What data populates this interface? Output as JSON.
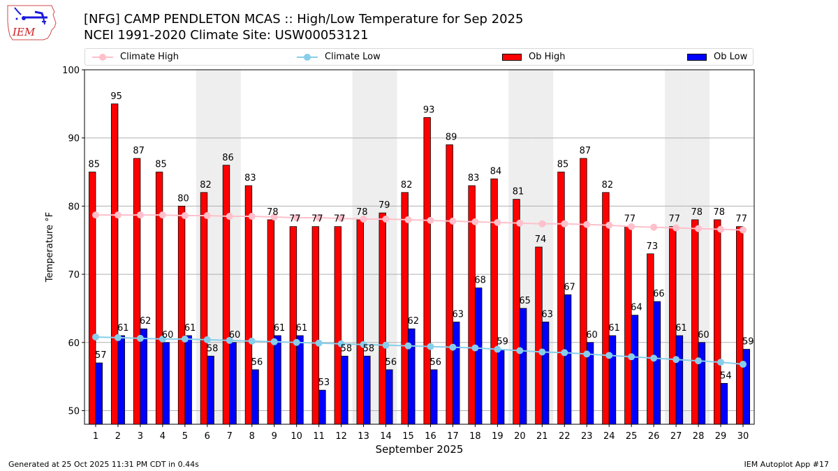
{
  "header": {
    "title_line1": "[NFG] CAMP PENDLETON MCAS :: High/Low Temperature for Sep 2025",
    "title_line2": "NCEI 1991-2020 Climate Site: USW00053121",
    "logo_text": "IEM"
  },
  "footer": {
    "generated": "Generated at 25 Oct 2025 11:31 PM CDT in 0.44s",
    "app": "IEM Autoplot App #17"
  },
  "legend": {
    "items": [
      {
        "label": "Climate High",
        "type": "line",
        "color": "#ffc0cb"
      },
      {
        "label": "Climate Low",
        "type": "line",
        "color": "#87ceeb"
      },
      {
        "label": "Ob High",
        "type": "bar",
        "color": "#ff0000"
      },
      {
        "label": "Ob Low",
        "type": "bar",
        "color": "#0000ff"
      }
    ]
  },
  "chart_data": {
    "type": "bar",
    "title": "[NFG] CAMP PENDLETON MCAS :: High/Low Temperature for Sep 2025",
    "subtitle": "NCEI 1991-2020 Climate Site: USW00053121",
    "xlabel": "September 2025",
    "ylabel": "Temperature °F",
    "ylim": [
      48,
      100
    ],
    "yticks": [
      50,
      60,
      70,
      80,
      90,
      100
    ],
    "grid": "horizontal",
    "legend_position": "top",
    "categories": [
      "1",
      "2",
      "3",
      "4",
      "5",
      "6",
      "7",
      "8",
      "9",
      "10",
      "11",
      "12",
      "13",
      "14",
      "15",
      "16",
      "17",
      "18",
      "19",
      "20",
      "21",
      "22",
      "23",
      "24",
      "25",
      "26",
      "27",
      "28",
      "29",
      "30"
    ],
    "weekend_shading_days": [
      6,
      7,
      13,
      14,
      20,
      21,
      27,
      28
    ],
    "series": [
      {
        "name": "Ob High",
        "type": "bar",
        "color": "#ff0000",
        "values": [
          85,
          95,
          87,
          85,
          80,
          82,
          86,
          83,
          78,
          77,
          77,
          77,
          78,
          79,
          82,
          93,
          89,
          83,
          84,
          81,
          74,
          85,
          87,
          82,
          77,
          73,
          77,
          78,
          78,
          77
        ]
      },
      {
        "name": "Ob Low",
        "type": "bar",
        "color": "#0000ff",
        "values": [
          57,
          61,
          62,
          60,
          61,
          58,
          60,
          56,
          61,
          61,
          53,
          58,
          58,
          56,
          62,
          56,
          63,
          68,
          59,
          65,
          63,
          67,
          60,
          61,
          64,
          66,
          61,
          60,
          54,
          59
        ]
      },
      {
        "name": "Climate High",
        "type": "line",
        "color": "#ffc0cb",
        "values": [
          78.7,
          78.7,
          78.7,
          78.7,
          78.6,
          78.6,
          78.5,
          78.5,
          78.4,
          78.3,
          78.3,
          78.2,
          78.1,
          78.1,
          78.0,
          77.9,
          77.8,
          77.7,
          77.6,
          77.5,
          77.4,
          77.4,
          77.3,
          77.2,
          77.0,
          76.9,
          76.8,
          76.7,
          76.6,
          76.5
        ]
      },
      {
        "name": "Climate Low",
        "type": "line",
        "color": "#87ceeb",
        "values": [
          60.8,
          60.7,
          60.6,
          60.5,
          60.5,
          60.4,
          60.3,
          60.2,
          60.1,
          60.0,
          59.9,
          59.8,
          59.7,
          59.6,
          59.5,
          59.4,
          59.3,
          59.2,
          59.0,
          58.8,
          58.6,
          58.5,
          58.3,
          58.1,
          57.9,
          57.7,
          57.5,
          57.3,
          57.1,
          56.8
        ]
      }
    ]
  }
}
